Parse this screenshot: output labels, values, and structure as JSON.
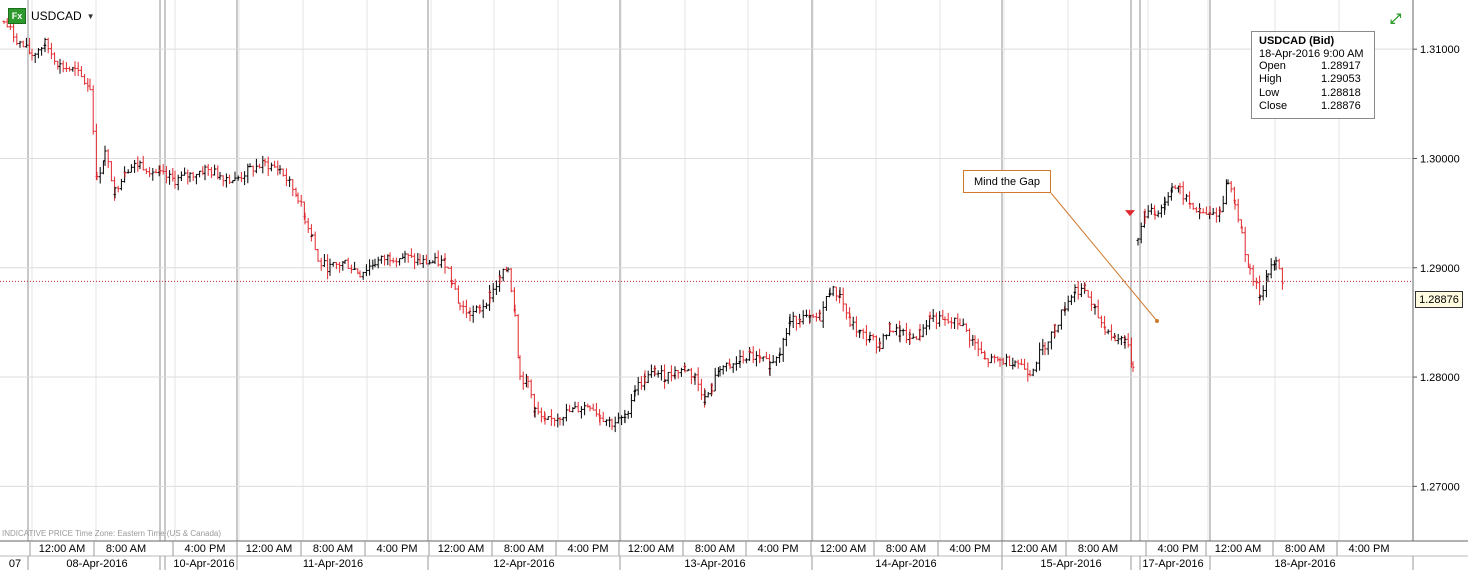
{
  "header": {
    "symbol": "USDCAD",
    "fx_badge": "Fx"
  },
  "tooltip": {
    "title": "USDCAD (Bid)",
    "datetime": "18-Apr-2016  9:00 AM",
    "rows": [
      {
        "label": "Open",
        "value": "1.28917"
      },
      {
        "label": "High",
        "value": "1.29053"
      },
      {
        "label": "Low",
        "value": "1.28818"
      },
      {
        "label": "Close",
        "value": "1.28876"
      }
    ]
  },
  "annotation": {
    "text": "Mind the Gap"
  },
  "last_price_label": "1.28876",
  "footer": {
    "note": "INDICATIVE PRICE   Time Zone: Eastern Time (US & Canada)"
  },
  "colors": {
    "up": "#000000",
    "down": "#e0282e",
    "grid": "#dcdcdc",
    "last_line": "#c0282e",
    "annotation": "#d07a2e"
  },
  "chart_data": {
    "type": "ohlc",
    "title": "USDCAD",
    "ylim": [
      1.265,
      1.3145
    ],
    "y_ticks": [
      "1.27000",
      "1.28000",
      "1.29000",
      "1.30000",
      "1.31000"
    ],
    "time_row": [
      {
        "label": "12:00 AM",
        "x": 62
      },
      {
        "label": "8:00 AM",
        "x": 126
      },
      {
        "label": "4:00 PM",
        "x": 205
      },
      {
        "label": "12:00 AM",
        "x": 269
      },
      {
        "label": "8:00 AM",
        "x": 333
      },
      {
        "label": "4:00 PM",
        "x": 397
      },
      {
        "label": "12:00 AM",
        "x": 461
      },
      {
        "label": "8:00 AM",
        "x": 524
      },
      {
        "label": "4:00 PM",
        "x": 588
      },
      {
        "label": "12:00 AM",
        "x": 651
      },
      {
        "label": "8:00 AM",
        "x": 715
      },
      {
        "label": "4:00 PM",
        "x": 778
      },
      {
        "label": "12:00 AM",
        "x": 843
      },
      {
        "label": "8:00 AM",
        "x": 906
      },
      {
        "label": "4:00 PM",
        "x": 970
      },
      {
        "label": "12:00 AM",
        "x": 1034
      },
      {
        "label": "8:00 AM",
        "x": 1098
      },
      {
        "label": "4:00 PM",
        "x": 1178
      },
      {
        "label": "12:00 AM",
        "x": 1238
      },
      {
        "label": "8:00 AM",
        "x": 1305
      },
      {
        "label": "4:00 PM",
        "x": 1369
      }
    ],
    "date_row": [
      {
        "label": "07",
        "x": 15
      },
      {
        "label": "08-Apr-2016",
        "x": 97
      },
      {
        "label": "10-Apr-2016",
        "x": 204
      },
      {
        "label": "11-Apr-2016",
        "x": 333
      },
      {
        "label": "12-Apr-2016",
        "x": 524
      },
      {
        "label": "13-Apr-2016",
        "x": 715
      },
      {
        "label": "14-Apr-2016",
        "x": 906
      },
      {
        "label": "15-Apr-2016",
        "x": 1071
      },
      {
        "label": "17-Apr-2016",
        "x": 1173
      },
      {
        "label": "18-Apr-2016",
        "x": 1305
      }
    ],
    "last_price": 1.28876,
    "closes_path": [
      [
        4,
        1.3125
      ],
      [
        20,
        1.3105
      ],
      [
        32,
        1.3095
      ],
      [
        45,
        1.3105
      ],
      [
        60,
        1.3085
      ],
      [
        75,
        1.308
      ],
      [
        90,
        1.3065
      ],
      [
        97,
        1.298
      ],
      [
        105,
        1.3005
      ],
      [
        115,
        1.297
      ],
      [
        125,
        1.299
      ],
      [
        140,
        1.2995
      ],
      [
        160,
        1.2985
      ],
      [
        175,
        1.298
      ],
      [
        190,
        1.2985
      ],
      [
        205,
        1.299
      ],
      [
        220,
        1.2985
      ],
      [
        235,
        1.298
      ],
      [
        250,
        1.299
      ],
      [
        265,
        1.2995
      ],
      [
        280,
        1.299
      ],
      [
        298,
        1.2965
      ],
      [
        305,
        1.2945
      ],
      [
        312,
        1.293
      ],
      [
        318,
        1.2905
      ],
      [
        330,
        1.29
      ],
      [
        345,
        1.2905
      ],
      [
        360,
        1.2895
      ],
      [
        375,
        1.2905
      ],
      [
        390,
        1.291
      ],
      [
        405,
        1.291
      ],
      [
        420,
        1.2905
      ],
      [
        435,
        1.2905
      ],
      [
        445,
        1.2905
      ],
      [
        452,
        1.289
      ],
      [
        460,
        1.2865
      ],
      [
        470,
        1.2858
      ],
      [
        480,
        1.2862
      ],
      [
        490,
        1.2875
      ],
      [
        500,
        1.289
      ],
      [
        508,
        1.29
      ],
      [
        515,
        1.286
      ],
      [
        520,
        1.28
      ],
      [
        528,
        1.2795
      ],
      [
        535,
        1.277
      ],
      [
        545,
        1.2758
      ],
      [
        560,
        1.2765
      ],
      [
        575,
        1.277
      ],
      [
        590,
        1.2775
      ],
      [
        600,
        1.2765
      ],
      [
        612,
        1.2758
      ],
      [
        625,
        1.2762
      ],
      [
        635,
        1.279
      ],
      [
        645,
        1.2798
      ],
      [
        655,
        1.2805
      ],
      [
        665,
        1.28
      ],
      [
        675,
        1.2805
      ],
      [
        685,
        1.2808
      ],
      [
        695,
        1.28
      ],
      [
        705,
        1.278
      ],
      [
        712,
        1.279
      ],
      [
        720,
        1.281
      ],
      [
        730,
        1.2808
      ],
      [
        740,
        1.2815
      ],
      [
        750,
        1.282
      ],
      [
        760,
        1.2815
      ],
      [
        770,
        1.2812
      ],
      [
        780,
        1.2825
      ],
      [
        790,
        1.285
      ],
      [
        800,
        1.2855
      ],
      [
        810,
        1.2852
      ],
      [
        820,
        1.2855
      ],
      [
        830,
        1.288
      ],
      [
        840,
        1.2875
      ],
      [
        850,
        1.285
      ],
      [
        860,
        1.284
      ],
      [
        870,
        1.2835
      ],
      [
        880,
        1.283
      ],
      [
        890,
        1.2845
      ],
      [
        900,
        1.284
      ],
      [
        910,
        1.2835
      ],
      [
        920,
        1.284
      ],
      [
        930,
        1.2855
      ],
      [
        945,
        1.285
      ],
      [
        960,
        1.285
      ],
      [
        975,
        1.283
      ],
      [
        985,
        1.2815
      ],
      [
        1000,
        1.2815
      ],
      [
        1015,
        1.2815
      ],
      [
        1030,
        1.2805
      ],
      [
        1045,
        1.283
      ],
      [
        1055,
        1.2845
      ],
      [
        1065,
        1.2865
      ],
      [
        1075,
        1.288
      ],
      [
        1085,
        1.288
      ],
      [
        1095,
        1.286
      ],
      [
        1105,
        1.2845
      ],
      [
        1115,
        1.2835
      ],
      [
        1125,
        1.2835
      ],
      [
        1133,
        1.281
      ],
      [
        1136,
        1.2765
      ],
      null,
      [
        1138,
        1.293
      ],
      [
        1145,
        1.295
      ],
      [
        1155,
        1.295
      ],
      [
        1165,
        1.296
      ],
      [
        1172,
        1.2975
      ],
      [
        1180,
        1.297
      ],
      [
        1190,
        1.2958
      ],
      [
        1200,
        1.295
      ],
      [
        1210,
        1.2948
      ],
      [
        1220,
        1.2952
      ],
      [
        1228,
        1.298
      ],
      [
        1235,
        1.296
      ],
      [
        1242,
        1.293
      ],
      [
        1250,
        1.2895
      ],
      [
        1260,
        1.2875
      ],
      [
        1268,
        1.2895
      ],
      [
        1276,
        1.2905
      ],
      [
        1284,
        1.2885
      ]
    ]
  }
}
